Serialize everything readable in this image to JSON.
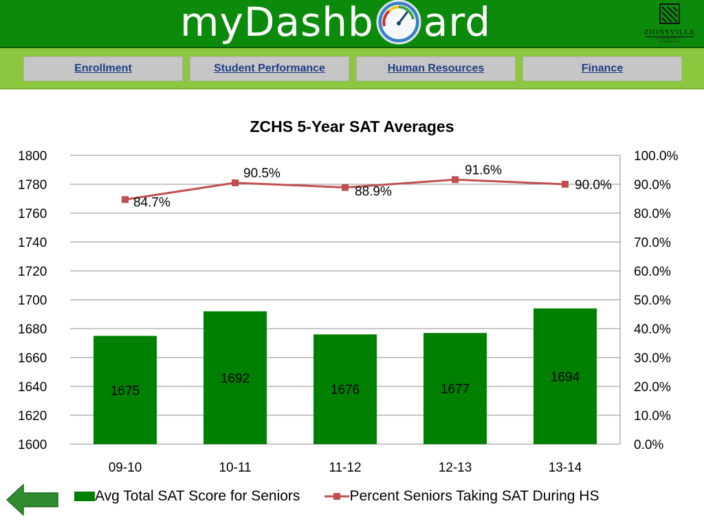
{
  "header": {
    "logo_left": "myDashb",
    "logo_right": "ard",
    "school_name": "ZIONSVILLE",
    "school_sub": "COMMUNITY SCHOOLS"
  },
  "nav": {
    "items": [
      {
        "label": "Enrollment"
      },
      {
        "label": "Student Performance"
      },
      {
        "label": "Human Resources"
      },
      {
        "label": "Finance"
      }
    ]
  },
  "colors": {
    "header_green": "#0c8a0c",
    "nav_green": "#8dc63f",
    "bar_green": "#008000",
    "line_red": "#c0504d"
  },
  "chart_data": {
    "type": "bar",
    "title": "ZCHS 5-Year SAT Averages",
    "categories": [
      "09-10",
      "10-11",
      "11-12",
      "12-13",
      "13-14"
    ],
    "ylim": [
      1600,
      1800
    ],
    "y2lim": [
      0,
      100
    ],
    "yticks": [
      "1600",
      "1620",
      "1640",
      "1660",
      "1680",
      "1700",
      "1720",
      "1740",
      "1760",
      "1780",
      "1800"
    ],
    "y2ticks": [
      "0.0%",
      "10.0%",
      "20.0%",
      "30.0%",
      "40.0%",
      "50.0%",
      "60.0%",
      "70.0%",
      "80.0%",
      "90.0%",
      "100.0%"
    ],
    "grid": true,
    "legend_position": "bottom",
    "series": [
      {
        "name": "Avg Total SAT Score for Seniors",
        "type": "bar",
        "axis": "left",
        "values": [
          1675,
          1692,
          1676,
          1677,
          1694
        ],
        "labels": [
          "1675",
          "1692",
          "1676",
          "1677",
          "1694"
        ]
      },
      {
        "name": "Percent Seniors Taking SAT During HS",
        "type": "line",
        "axis": "right",
        "values": [
          84.7,
          90.5,
          88.9,
          91.6,
          90.0
        ],
        "labels": [
          "84.7%",
          "90.5%",
          "88.9%",
          "91.6%",
          "90.0%"
        ]
      }
    ]
  }
}
